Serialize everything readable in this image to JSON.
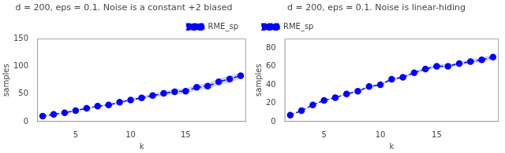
{
  "chart_data": [
    {
      "type": "line",
      "title": "d = 200, eps = 0.1. Noise is a constant +2 biased",
      "xlabel": "k",
      "ylabel": "samples",
      "x": [
        2,
        3,
        4,
        5,
        6,
        7,
        8,
        9,
        10,
        11,
        12,
        13,
        14,
        15,
        16,
        17,
        18,
        19,
        20
      ],
      "series": [
        {
          "name": "RME_sp",
          "color": "blue",
          "line_style": "dashed",
          "marker": "circle",
          "values": [
            10,
            13,
            16,
            20,
            24,
            28,
            30,
            35,
            39,
            43,
            47,
            51,
            54,
            55,
            62,
            64,
            72,
            77,
            83
          ],
          "std": [
            0.8,
            0.8,
            1.0,
            1.0,
            1.5,
            1.5,
            2.0,
            2.5,
            2.5,
            3.0,
            3.5,
            4.0,
            4.5,
            5.0,
            5.0,
            5.5,
            6.0,
            6.0,
            5.5
          ]
        }
      ],
      "xlim": [
        1.5,
        20.5
      ],
      "xticks": [
        5,
        10,
        15
      ],
      "ylim": [
        0,
        150
      ],
      "yticks": [
        0,
        50,
        100,
        150
      ],
      "grid": false,
      "legend": "upper right"
    },
    {
      "type": "line",
      "title": "d = 200, eps = 0.1. Noise is linear-hiding",
      "xlabel": "k",
      "ylabel": "samples",
      "x": [
        2,
        3,
        4,
        5,
        6,
        7,
        8,
        9,
        10,
        11,
        12,
        13,
        14,
        15,
        16,
        17,
        18,
        19,
        20
      ],
      "series": [
        {
          "name": "RME_sp",
          "color": "blue",
          "line_style": "dashed",
          "marker": "circle",
          "values": [
            7,
            12,
            18,
            23,
            26,
            30,
            33,
            38,
            40,
            46,
            48,
            53,
            57,
            60,
            60,
            63,
            65,
            67,
            70
          ],
          "std": [
            0.3,
            0.3,
            0.4,
            0.4,
            0.7,
            0.7,
            1.0,
            1.0,
            1.0,
            1.5,
            1.5,
            1.5,
            2.0,
            2.0,
            2.0,
            2.0,
            2.5,
            2.5,
            2.5
          ]
        }
      ],
      "xlim": [
        1.5,
        20.5
      ],
      "xticks": [
        5,
        10,
        15
      ],
      "ylim": [
        0,
        90
      ],
      "yticks": [
        0,
        20,
        40,
        60,
        80
      ],
      "grid": false,
      "legend": "upper left"
    }
  ]
}
